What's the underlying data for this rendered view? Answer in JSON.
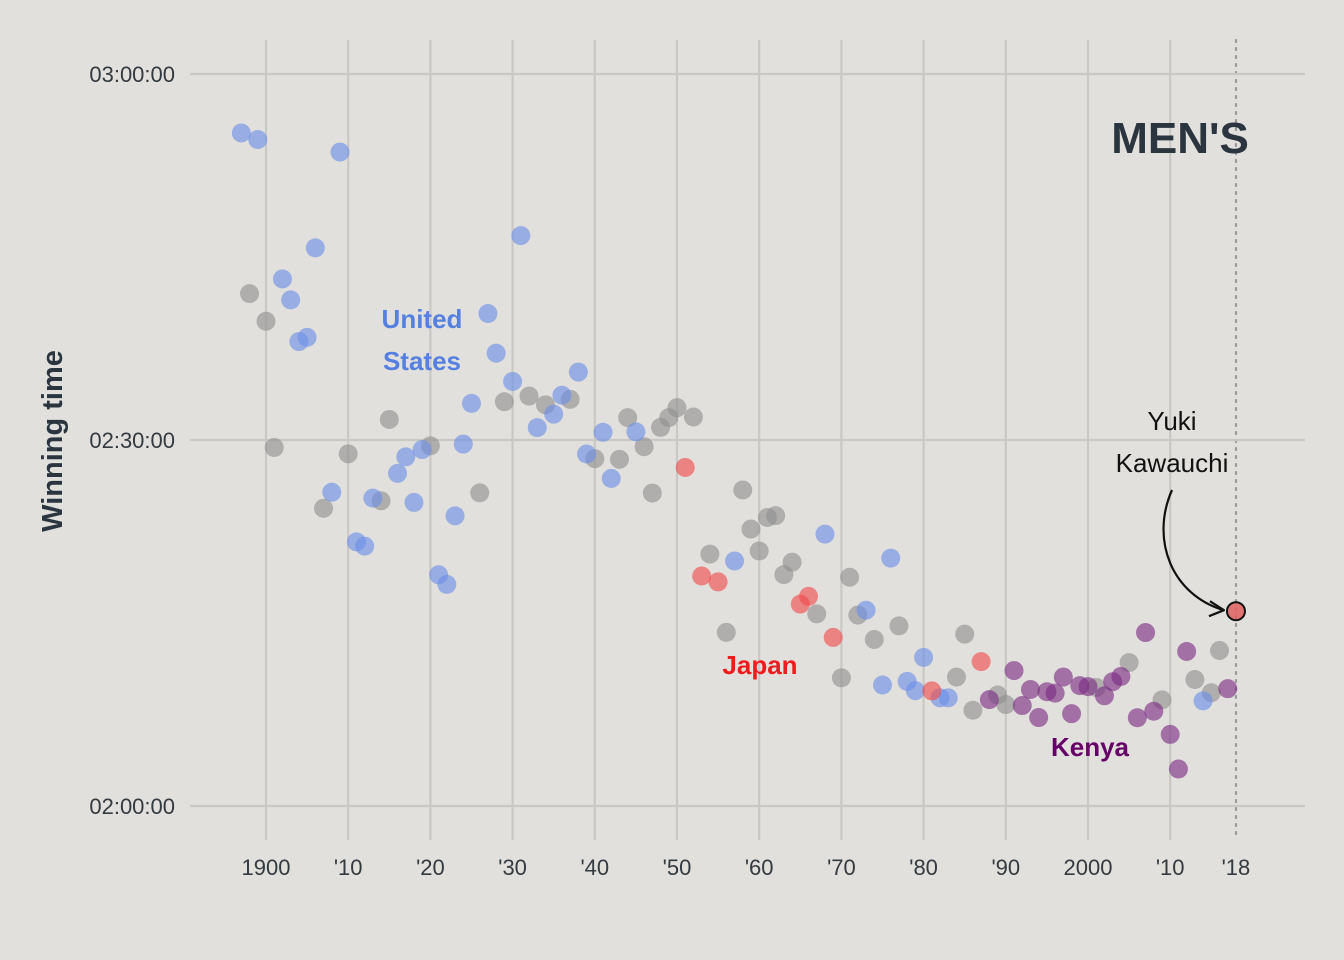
{
  "chart_data": {
    "type": "scatter",
    "title": "",
    "panel_label": "MEN'S",
    "xlabel": "",
    "ylabel": "Winning time",
    "xlim": [
      1884,
      2020
    ],
    "ylim_seconds": [
      7200,
      10800
    ],
    "x_ticks": [
      {
        "value": 1900,
        "label": "1900"
      },
      {
        "value": 1910,
        "label": "'10"
      },
      {
        "value": 1920,
        "label": "'20"
      },
      {
        "value": 1930,
        "label": "'30"
      },
      {
        "value": 1940,
        "label": "'40"
      },
      {
        "value": 1950,
        "label": "'50"
      },
      {
        "value": 1960,
        "label": "'60"
      },
      {
        "value": 1970,
        "label": "'70"
      },
      {
        "value": 1980,
        "label": "'80"
      },
      {
        "value": 1990,
        "label": "'90"
      },
      {
        "value": 2000,
        "label": "2000"
      },
      {
        "value": 2010,
        "label": "'10"
      },
      {
        "value": 2018,
        "label": "'18"
      }
    ],
    "y_ticks": [
      {
        "value": 10800,
        "label": "03:00:00"
      },
      {
        "value": 9000,
        "label": "02:30:00"
      },
      {
        "value": 7200,
        "label": "02:00:00"
      }
    ],
    "grid": true,
    "highlight_year": 2018,
    "colors": {
      "United States": "#6a8ee6",
      "Japan": "#f04a4a",
      "Kenya": "#7b2c83",
      "Other": "#8f8f8f",
      "highlight": "#e06060"
    },
    "group_labels": [
      {
        "group": "United States",
        "lines": [
          "United",
          "States"
        ],
        "color": "#5580e0"
      },
      {
        "group": "Japan",
        "lines": [
          "Japan"
        ],
        "color": "#ee1c1c"
      },
      {
        "group": "Kenya",
        "lines": [
          "Kenya"
        ],
        "color": "#650068"
      }
    ],
    "annotation": {
      "lines": [
        "Yuki",
        "Kawauchi"
      ],
      "year": 2018,
      "time": "2:15:58"
    },
    "series": [
      {
        "name": "United States",
        "points": [
          [
            1897,
            "2:55:10"
          ],
          [
            1899,
            "2:54:38"
          ],
          [
            1902,
            "2:43:12"
          ],
          [
            1903,
            "2:41:29"
          ],
          [
            1904,
            "2:38:04"
          ],
          [
            1905,
            "2:38:25"
          ],
          [
            1906,
            "2:45:45"
          ],
          [
            1908,
            "2:25:43"
          ],
          [
            1909,
            "2:53:36"
          ],
          [
            1911,
            "2:21:39"
          ],
          [
            1912,
            "2:21:18"
          ],
          [
            1913,
            "2:25:14"
          ],
          [
            1916,
            "2:27:16"
          ],
          [
            1917,
            "2:28:37"
          ],
          [
            1918,
            "2:24:53"
          ],
          [
            1919,
            "2:29:13"
          ],
          [
            1921,
            "2:18:57"
          ],
          [
            1922,
            "2:18:10"
          ],
          [
            1923,
            "2:23:47"
          ],
          [
            1924,
            "2:29:40"
          ],
          [
            1925,
            "2:33:00"
          ],
          [
            1927,
            "2:40:22"
          ],
          [
            1928,
            "2:37:07"
          ],
          [
            1930,
            "2:34:48"
          ],
          [
            1931,
            "2:46:45"
          ],
          [
            1933,
            "2:31:01"
          ],
          [
            1935,
            "2:32:07"
          ],
          [
            1936,
            "2:33:40"
          ],
          [
            1938,
            "2:35:34"
          ],
          [
            1939,
            "2:28:51"
          ],
          [
            1941,
            "2:30:38"
          ],
          [
            1942,
            "2:26:51"
          ],
          [
            1945,
            "2:30:40"
          ],
          [
            1957,
            "2:20:05"
          ],
          [
            1968,
            "2:22:17"
          ],
          [
            1973,
            "2:16:03"
          ],
          [
            1975,
            "2:09:55"
          ],
          [
            1976,
            "2:20:19"
          ],
          [
            1978,
            "2:10:13"
          ],
          [
            1979,
            "2:09:27"
          ],
          [
            1980,
            "2:12:11"
          ],
          [
            1982,
            "2:08:52"
          ],
          [
            1983,
            "2:08:52"
          ],
          [
            2014,
            "2:08:37"
          ]
        ]
      },
      {
        "name": "Japan",
        "points": [
          [
            1951,
            "2:27:45"
          ],
          [
            1953,
            "2:18:51"
          ],
          [
            1955,
            "2:18:22"
          ],
          [
            1965,
            "2:16:33"
          ],
          [
            1966,
            "2:17:11"
          ],
          [
            1969,
            "2:13:49"
          ],
          [
            1981,
            "2:09:26"
          ],
          [
            1987,
            "2:11:50"
          ]
        ]
      },
      {
        "name": "Kenya",
        "points": [
          [
            1988,
            "2:08:43"
          ],
          [
            1991,
            "2:11:06"
          ],
          [
            1992,
            "2:08:14"
          ],
          [
            1993,
            "2:09:33"
          ],
          [
            1994,
            "2:07:15"
          ],
          [
            1995,
            "2:09:22"
          ],
          [
            1996,
            "2:09:15"
          ],
          [
            1997,
            "2:10:34"
          ],
          [
            1998,
            "2:07:34"
          ],
          [
            1999,
            "2:09:52"
          ],
          [
            2000,
            "2:09:47"
          ],
          [
            2002,
            "2:09:02"
          ],
          [
            2003,
            "2:10:11"
          ],
          [
            2004,
            "2:10:37"
          ],
          [
            2006,
            "2:07:14"
          ],
          [
            2007,
            "2:14:13"
          ],
          [
            2008,
            "2:07:46"
          ],
          [
            2010,
            "2:05:52"
          ],
          [
            2011,
            "2:03:02"
          ],
          [
            2012,
            "2:12:40"
          ],
          [
            2017,
            "2:09:37"
          ]
        ]
      },
      {
        "name": "Other",
        "points": [
          [
            1898,
            "2:42:00"
          ],
          [
            1900,
            "2:39:44"
          ],
          [
            1901,
            "2:29:23"
          ],
          [
            1907,
            "2:24:24"
          ],
          [
            1910,
            "2:28:52"
          ],
          [
            1914,
            "2:25:01"
          ],
          [
            1915,
            "2:31:41"
          ],
          [
            1920,
            "2:29:31"
          ],
          [
            1926,
            "2:25:40"
          ],
          [
            1929,
            "2:33:08"
          ],
          [
            1932,
            "2:33:36"
          ],
          [
            1934,
            "2:32:53"
          ],
          [
            1937,
            "2:33:20"
          ],
          [
            1940,
            "2:28:28"
          ],
          [
            1943,
            "2:28:25"
          ],
          [
            1944,
            "2:31:50"
          ],
          [
            1946,
            "2:29:27"
          ],
          [
            1947,
            "2:25:39"
          ],
          [
            1948,
            "2:31:02"
          ],
          [
            1949,
            "2:31:50"
          ],
          [
            1950,
            "2:32:39"
          ],
          [
            1952,
            "2:31:53"
          ],
          [
            1954,
            "2:20:39"
          ],
          [
            1956,
            "2:14:14"
          ],
          [
            1958,
            "2:25:54"
          ],
          [
            1959,
            "2:22:42"
          ],
          [
            1960,
            "2:20:54"
          ],
          [
            1961,
            "2:23:39"
          ],
          [
            1962,
            "2:23:48"
          ],
          [
            1963,
            "2:18:58"
          ],
          [
            1964,
            "2:19:59"
          ],
          [
            1967,
            "2:15:45"
          ],
          [
            1970,
            "2:10:30"
          ],
          [
            1971,
            "2:18:45"
          ],
          [
            1972,
            "2:15:39"
          ],
          [
            1974,
            "2:13:39"
          ],
          [
            1977,
            "2:14:46"
          ],
          [
            1984,
            "2:10:34"
          ],
          [
            1985,
            "2:14:05"
          ],
          [
            1986,
            "2:07:51"
          ],
          [
            1989,
            "2:09:06"
          ],
          [
            1990,
            "2:08:19"
          ],
          [
            2001,
            "2:09:43"
          ],
          [
            2005,
            "2:11:45"
          ],
          [
            2009,
            "2:08:42"
          ],
          [
            2013,
            "2:10:22"
          ],
          [
            2015,
            "2:09:17"
          ],
          [
            2016,
            "2:12:45"
          ]
        ]
      },
      {
        "name": "Yuki Kawauchi",
        "points": [
          [
            2018,
            "2:15:58"
          ]
        ]
      }
    ]
  }
}
